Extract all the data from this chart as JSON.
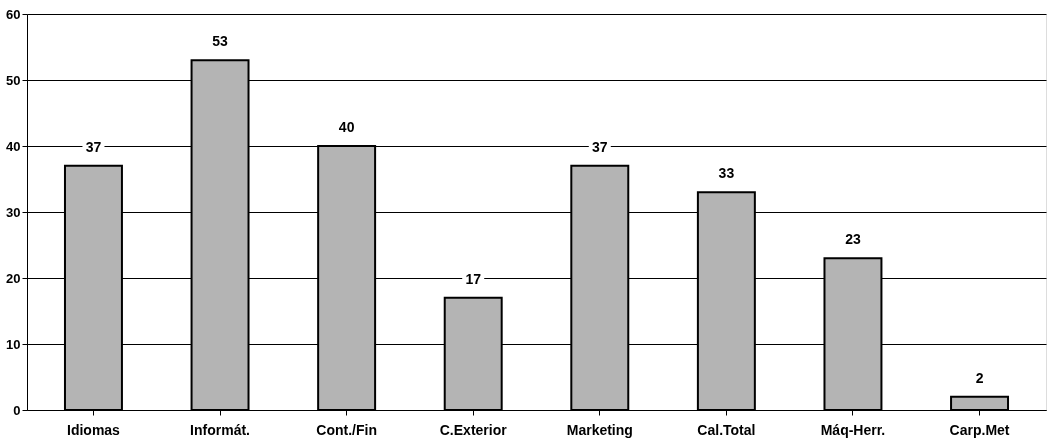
{
  "chart_data": {
    "type": "bar",
    "categories": [
      "Idiomas",
      "Informát.",
      "Cont./Fin",
      "C.Exterior",
      "Marketing",
      "Cal.Total",
      "Máq-Herr.",
      "Carp.Met"
    ],
    "values": [
      37,
      53,
      40,
      17,
      37,
      33,
      23,
      2
    ],
    "color": "#b4b4b4",
    "ylim": [
      0,
      60
    ],
    "yticks": [
      0,
      10,
      20,
      30,
      40,
      50,
      60
    ],
    "grid": "y",
    "data_labels": true
  }
}
